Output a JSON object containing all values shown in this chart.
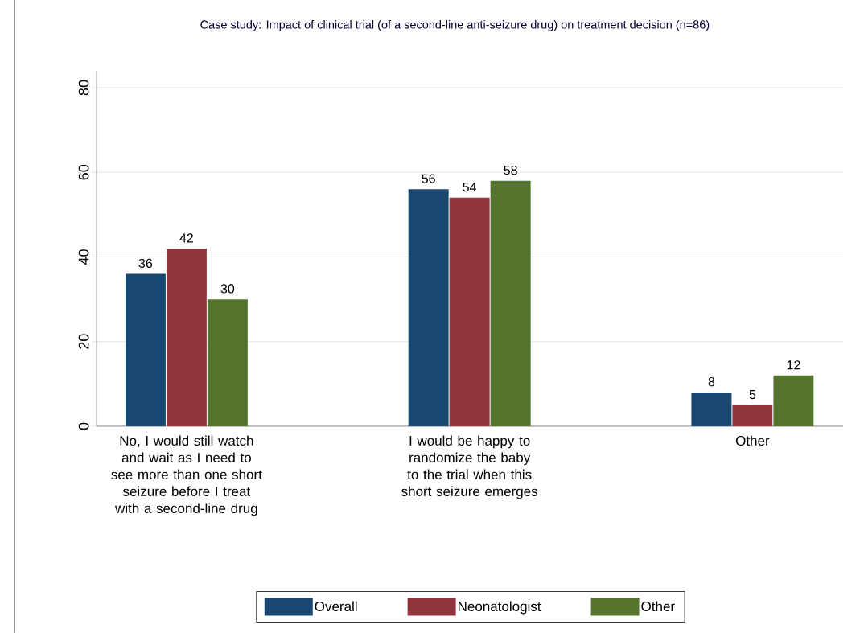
{
  "chart_data": {
    "type": "bar",
    "title": "Case study: Impact of clinical trial (of a second-line anti-seizure drug) on treatment decision (n=86)",
    "categories": [
      "No, I would still watch and wait as I need to see more than one short seizure before I treat with a second-line drug",
      "I would be happy to randomize the baby to the trial when this short seizure emerges",
      "Other"
    ],
    "series": [
      {
        "name": "Overall",
        "color": "#1a476f",
        "values": [
          36,
          56,
          8
        ]
      },
      {
        "name": "Neonatologist",
        "color": "#90353b",
        "values": [
          42,
          54,
          5
        ]
      },
      {
        "name": "Other",
        "color": "#55752f",
        "values": [
          30,
          58,
          12
        ]
      }
    ],
    "ylim": [
      0,
      84
    ],
    "yticks": [
      0,
      20,
      40,
      60,
      80
    ],
    "grid": "y",
    "legend": "bottom",
    "data_labels": true
  }
}
